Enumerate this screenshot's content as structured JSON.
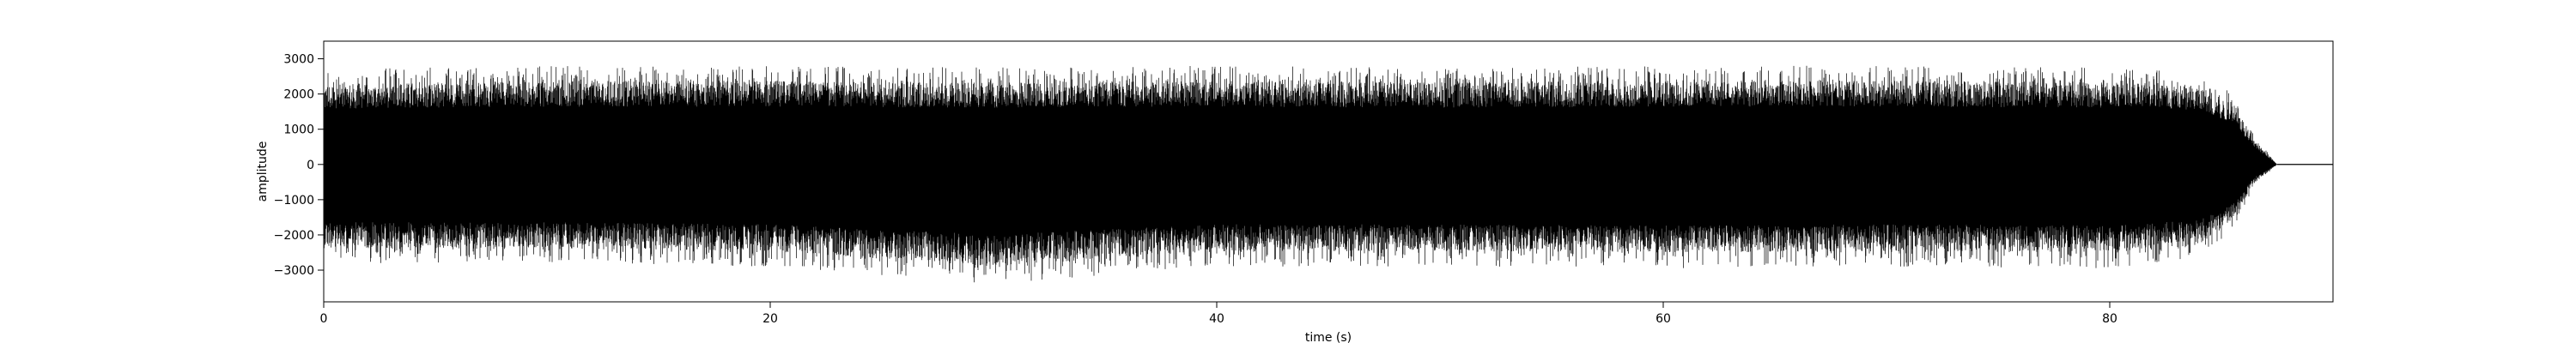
{
  "chart_data": {
    "type": "line",
    "title": "",
    "xlabel": "time (s)",
    "ylabel": "amplitude",
    "xlim": [
      0,
      90
    ],
    "ylim": [
      -3900,
      3500
    ],
    "xticks": [
      0,
      20,
      40,
      60,
      80
    ],
    "yticks": [
      -3000,
      -2000,
      -1000,
      0,
      1000,
      2000,
      3000
    ],
    "xtick_labels": [
      "0",
      "20",
      "40",
      "60",
      "80"
    ],
    "ytick_labels": [
      "−3000",
      "−2000",
      "−1000",
      "0",
      "1000",
      "2000",
      "3000"
    ],
    "grid": false,
    "legend": "none",
    "line_color": "#000000",
    "series": [
      {
        "values_description_free": true,
        "envelope": {
          "x": [
            0,
            10,
            20,
            30,
            40,
            50,
            60,
            70,
            80,
            84,
            85.5,
            86.5,
            87.5,
            90
          ],
          "upper": [
            2700,
            2800,
            2800,
            2750,
            2800,
            2750,
            2800,
            2800,
            2750,
            2650,
            2000,
            800,
            0,
            0
          ],
          "lower": [
            -2800,
            -2800,
            -2900,
            -3400,
            -2900,
            -2900,
            -2950,
            -2900,
            -2950,
            -2700,
            -1900,
            -600,
            0,
            0
          ]
        }
      }
    ]
  }
}
